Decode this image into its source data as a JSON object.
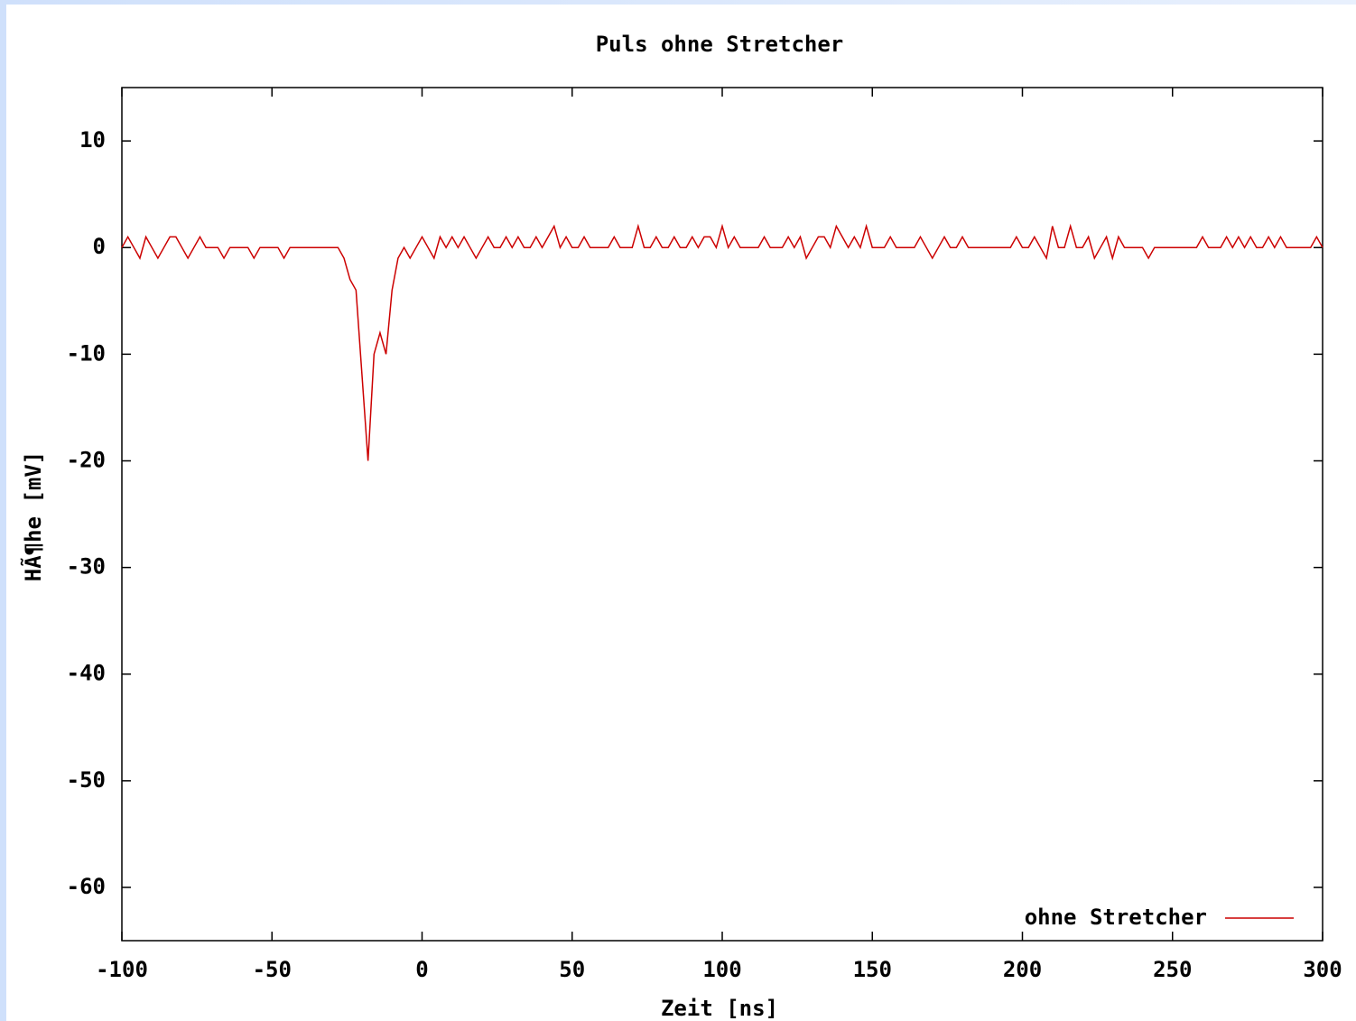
{
  "chart_data": {
    "type": "line",
    "title": "Puls ohne Stretcher",
    "xlabel": "Zeit [ns]",
    "ylabel": "HÃ¶he [mV]",
    "xlim": [
      -100,
      300
    ],
    "ylim": [
      -65,
      15
    ],
    "xticks": [
      -100,
      -50,
      0,
      50,
      100,
      150,
      200,
      250,
      300
    ],
    "yticks": [
      10,
      0,
      -10,
      -20,
      -30,
      -40,
      -50,
      -60
    ],
    "legend": "bottom-right",
    "x": [
      -100,
      -98,
      -96,
      -94,
      -92,
      -90,
      -88,
      -86,
      -84,
      -82,
      -80,
      -78,
      -76,
      -74,
      -72,
      -70,
      -68,
      -66,
      -64,
      -62,
      -60,
      -58,
      -56,
      -54,
      -52,
      -50,
      -48,
      -46,
      -44,
      -42,
      -40,
      -38,
      -36,
      -34,
      -32,
      -30,
      -28,
      -26,
      -24,
      -22,
      -20,
      -18,
      -16,
      -14,
      -12,
      -10,
      -8,
      -6,
      -4,
      -2,
      0,
      2,
      4,
      6,
      8,
      10,
      12,
      14,
      16,
      18,
      20,
      22,
      24,
      26,
      28,
      30,
      32,
      34,
      36,
      38,
      40,
      42,
      44,
      46,
      48,
      50,
      52,
      54,
      56,
      58,
      60,
      62,
      64,
      66,
      68,
      70,
      72,
      74,
      76,
      78,
      80,
      82,
      84,
      86,
      88,
      90,
      92,
      94,
      96,
      98,
      100,
      102,
      104,
      106,
      108,
      110,
      112,
      114,
      116,
      118,
      120,
      122,
      124,
      126,
      128,
      130,
      132,
      134,
      136,
      138,
      140,
      142,
      144,
      146,
      148,
      150,
      152,
      154,
      156,
      158,
      160,
      162,
      164,
      166,
      168,
      170,
      172,
      174,
      176,
      178,
      180,
      182,
      184,
      186,
      188,
      190,
      192,
      194,
      196,
      198,
      200,
      202,
      204,
      206,
      208,
      210,
      212,
      214,
      216,
      218,
      220,
      222,
      224,
      226,
      228,
      230,
      232,
      234,
      236,
      238,
      240,
      242,
      244,
      246,
      248,
      250,
      252,
      254,
      256,
      258,
      260,
      262,
      264,
      266,
      268,
      270,
      272,
      274,
      276,
      278,
      280,
      282,
      284,
      286,
      288,
      290,
      292,
      294,
      296,
      298,
      300
    ],
    "series": [
      {
        "name": "ohne Stretcher",
        "color": "#cc0000",
        "values": [
          0,
          1,
          0,
          -1,
          1,
          0,
          -1,
          0,
          1,
          1,
          0,
          -1,
          0,
          1,
          0,
          0,
          0,
          -1,
          0,
          0,
          0,
          0,
          -1,
          0,
          0,
          0,
          0,
          -1,
          0,
          0,
          0,
          0,
          0,
          0,
          0,
          0,
          0,
          -1,
          -3,
          -4,
          -12,
          -20,
          -10,
          -8,
          -10,
          -4,
          -1,
          0,
          -1,
          0,
          1,
          0,
          -1,
          1,
          0,
          1,
          0,
          1,
          0,
          -1,
          0,
          1,
          0,
          0,
          1,
          0,
          1,
          0,
          0,
          1,
          0,
          1,
          2,
          0,
          1,
          0,
          0,
          1,
          0,
          0,
          0,
          0,
          1,
          0,
          0,
          0,
          2,
          0,
          0,
          1,
          0,
          0,
          1,
          0,
          0,
          1,
          0,
          1,
          1,
          0,
          2,
          0,
          1,
          0,
          0,
          0,
          0,
          1,
          0,
          0,
          0,
          1,
          0,
          1,
          -1,
          0,
          1,
          1,
          0,
          2,
          1,
          0,
          1,
          0,
          2,
          0,
          0,
          0,
          1,
          0,
          0,
          0,
          0,
          1,
          0,
          -1,
          0,
          1,
          0,
          0,
          1,
          0,
          0,
          0,
          0,
          0,
          0,
          0,
          0,
          1,
          0,
          0,
          1,
          0,
          -1,
          2,
          0,
          0,
          2,
          0,
          0,
          1,
          -1,
          0,
          1,
          -1,
          1,
          0,
          0,
          0,
          0,
          -1,
          0,
          0,
          0,
          0,
          0,
          0,
          0,
          0,
          1,
          0,
          0,
          0,
          1,
          0,
          1,
          0,
          1,
          0,
          0,
          1,
          0,
          1,
          0,
          0,
          0,
          0,
          0,
          1,
          0
        ]
      }
    ]
  }
}
